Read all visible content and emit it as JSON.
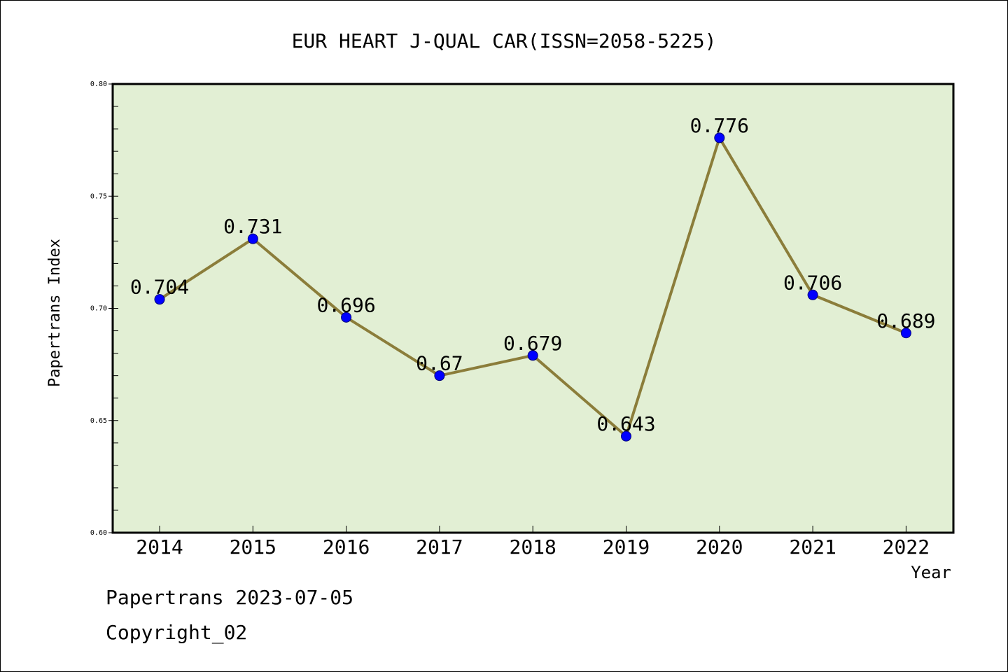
{
  "chart_data": {
    "type": "line",
    "title": "EUR HEART J-QUAL CAR(ISSN=2058-5225)",
    "xlabel": "Year",
    "ylabel": "Papertrans Index",
    "categories": [
      "2014",
      "2015",
      "2016",
      "2017",
      "2018",
      "2019",
      "2020",
      "2021",
      "2022"
    ],
    "values": [
      0.704,
      0.731,
      0.696,
      0.67,
      0.679,
      0.643,
      0.776,
      0.706,
      0.689
    ],
    "data_labels": [
      "0.704",
      "0.731",
      "0.696",
      "0.67",
      "0.679",
      "0.643",
      "0.776",
      "0.706",
      "0.689"
    ],
    "ylim": [
      0.6,
      0.8
    ],
    "yticks": [
      0.6,
      0.65,
      0.7,
      0.75,
      0.8
    ],
    "ytick_labels": [
      "0.60",
      "0.65",
      "0.70",
      "0.75",
      "0.80"
    ],
    "grid": false,
    "colors": {
      "plot_background": "#e2efd4",
      "line": "#8b7d3a",
      "marker": "#0000ff",
      "axes": "#000000"
    }
  },
  "footer": {
    "line1": "Papertrans 2023-07-05",
    "line2": "Copyright_02"
  }
}
